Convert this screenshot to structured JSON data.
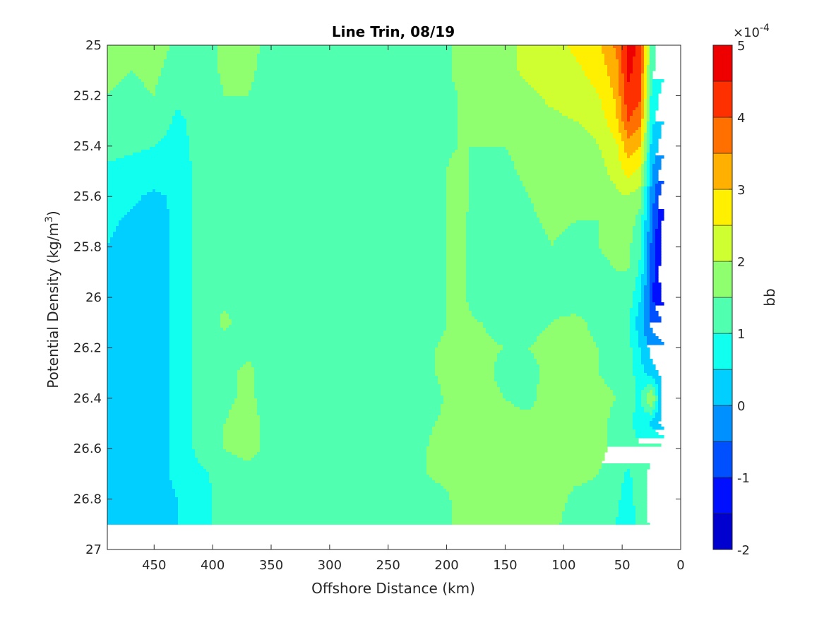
{
  "chart_data": {
    "type": "heatmap",
    "title": "Line Trin, 08/19",
    "xlabel": "Offshore Distance (km)",
    "ylabel_prefix": "Potential Density (kg/m",
    "ylabel_sup": "3",
    "ylabel_suffix": ")",
    "xlim": [
      490,
      0
    ],
    "ylim": [
      25,
      27
    ],
    "x_reversed": true,
    "y_reversed": true,
    "x_ticks": [
      450,
      400,
      350,
      300,
      250,
      200,
      150,
      100,
      50,
      0
    ],
    "x_tick_labels": [
      "450",
      "400",
      "350",
      "300",
      "250",
      "200",
      "150",
      "100",
      "50",
      "0"
    ],
    "y_ticks": [
      25,
      25.2,
      25.4,
      25.6,
      25.8,
      26,
      26.2,
      26.4,
      26.6,
      26.8,
      27
    ],
    "y_tick_labels": [
      "25",
      "25.2",
      "25.4",
      "25.6",
      "25.8",
      "26",
      "26.2",
      "26.4",
      "26.6",
      "26.8",
      "27"
    ],
    "colorbar": {
      "label": "bb",
      "exponent_label": "×10",
      "exponent_power": "-4",
      "range": [
        -2,
        5
      ],
      "ticks": [
        -2,
        -1,
        0,
        1,
        2,
        3,
        4,
        5
      ],
      "tick_labels": [
        "-2",
        "-1",
        "0",
        "1",
        "2",
        "3",
        "4",
        "5"
      ],
      "level_edges": [
        -2,
        -1.5,
        -1,
        -0.5,
        0,
        0.5,
        1,
        1.5,
        2,
        2.5,
        3,
        3.5,
        4,
        4.5,
        5
      ],
      "level_colors": [
        "#00008f",
        "#0000cf",
        "#0010ff",
        "#0050ff",
        "#0090ff",
        "#00cfff",
        "#10ffef",
        "#50ffaf",
        "#8fff70",
        "#cfff30",
        "#ffef00",
        "#ffb000",
        "#ff7000",
        "#ff3000",
        "#ef0000",
        "#af0000"
      ]
    },
    "data_extent": {
      "x_min": 10,
      "x_max": 490,
      "y_max": 26.9,
      "note_bottom_cut": "no data below 26.9"
    },
    "x": [
      490,
      470,
      450,
      430,
      410,
      390,
      370,
      350,
      330,
      310,
      290,
      270,
      250,
      230,
      210,
      190,
      170,
      150,
      130,
      110,
      90,
      70,
      55,
      45,
      35,
      25,
      15
    ],
    "y": [
      25,
      25.1,
      25.2,
      25.3,
      25.4,
      25.5,
      25.6,
      25.7,
      25.8,
      25.9,
      26,
      26.1,
      26.2,
      26.3,
      26.4,
      26.5,
      26.6,
      26.7,
      26.8,
      26.9
    ],
    "z_e4": [
      [
        1.7,
        1.6,
        1.7,
        1.4,
        1.3,
        1.6,
        1.7,
        1.3,
        1.3,
        1.3,
        1.3,
        1.3,
        1.3,
        1.3,
        1.3,
        1.6,
        1.7,
        1.9,
        2.1,
        2.3,
        2.6,
        2.9,
        3.6,
        4.7,
        4.4,
        1.2,
        0.7
      ],
      [
        1.6,
        1.5,
        1.6,
        1.3,
        1.2,
        1.6,
        1.6,
        1.3,
        1.3,
        1.3,
        1.3,
        1.3,
        1.3,
        1.3,
        1.3,
        1.6,
        1.7,
        1.9,
        2.1,
        2.2,
        2.4,
        2.7,
        3.3,
        4.6,
        4.3,
        1.1,
        0.6
      ],
      [
        1.5,
        1.4,
        1.5,
        1.1,
        1.2,
        1.5,
        1.5,
        1.3,
        1.3,
        1.3,
        1.3,
        1.3,
        1.3,
        1.3,
        1.3,
        1.5,
        1.6,
        1.7,
        1.9,
        2.1,
        2.2,
        2.5,
        3.1,
        4.4,
        4.1,
        0.9,
        0.3
      ],
      [
        1.4,
        1.3,
        1.3,
        0.9,
        1.2,
        1.4,
        1.4,
        1.3,
        1.3,
        1.3,
        1.3,
        1.3,
        1.3,
        1.3,
        1.4,
        1.5,
        1.6,
        1.6,
        1.8,
        1.9,
        2.0,
        2.2,
        2.9,
        4.0,
        3.7,
        0.7,
        0.0
      ],
      [
        1.2,
        1.1,
        1.0,
        0.8,
        1.2,
        1.3,
        1.3,
        1.3,
        1.3,
        1.3,
        1.3,
        1.3,
        1.3,
        1.3,
        1.4,
        1.5,
        1.5,
        1.5,
        1.7,
        1.8,
        1.7,
        2.0,
        2.4,
        3.3,
        3.0,
        0.4,
        -0.3
      ],
      [
        0.9,
        0.8,
        0.8,
        0.7,
        1.2,
        1.3,
        1.3,
        1.3,
        1.3,
        1.3,
        1.3,
        1.3,
        1.3,
        1.3,
        1.4,
        1.6,
        1.4,
        1.4,
        1.6,
        1.7,
        1.6,
        1.8,
        2.2,
        2.7,
        2.4,
        0.1,
        -0.8
      ],
      [
        0.7,
        0.6,
        0.4,
        0.6,
        1.2,
        1.3,
        1.3,
        1.3,
        1.3,
        1.3,
        1.3,
        1.3,
        1.3,
        1.3,
        1.4,
        1.6,
        1.4,
        1.3,
        1.5,
        1.7,
        1.5,
        1.6,
        1.9,
        2.0,
        1.7,
        -0.2,
        -1.4
      ],
      [
        0.6,
        0.4,
        0.3,
        0.6,
        1.2,
        1.3,
        1.3,
        1.3,
        1.3,
        1.3,
        1.3,
        1.3,
        1.3,
        1.3,
        1.4,
        1.6,
        1.3,
        1.3,
        1.4,
        1.6,
        1.5,
        1.5,
        1.7,
        1.8,
        1.3,
        -0.4,
        -1.6
      ],
      [
        0.5,
        0.3,
        0.3,
        0.6,
        1.2,
        1.3,
        1.3,
        1.3,
        1.3,
        1.3,
        1.3,
        1.3,
        1.3,
        1.3,
        1.4,
        1.6,
        1.3,
        1.2,
        1.3,
        1.5,
        1.3,
        1.5,
        1.6,
        1.6,
        1.1,
        -0.6,
        -1.8
      ],
      [
        0.4,
        0.3,
        0.3,
        0.6,
        1.2,
        1.3,
        1.3,
        1.3,
        1.3,
        1.3,
        1.3,
        1.3,
        1.3,
        1.3,
        1.4,
        1.6,
        1.3,
        1.2,
        1.3,
        1.4,
        1.3,
        1.4,
        1.5,
        1.5,
        0.9,
        -0.7,
        -1.9
      ],
      [
        0.3,
        0.3,
        0.3,
        0.6,
        1.2,
        1.4,
        1.3,
        1.3,
        1.3,
        1.3,
        1.3,
        1.3,
        1.3,
        1.3,
        1.4,
        1.6,
        1.3,
        1.2,
        1.3,
        1.4,
        1.3,
        1.4,
        1.4,
        1.3,
        0.6,
        -0.9,
        -1.7
      ],
      [
        0.3,
        0.3,
        0.3,
        0.6,
        1.2,
        1.6,
        1.3,
        1.3,
        1.3,
        1.3,
        1.3,
        1.3,
        1.3,
        1.3,
        1.4,
        1.6,
        1.5,
        1.3,
        1.4,
        1.5,
        1.6,
        1.4,
        1.3,
        1.1,
        0.2,
        -0.6,
        -1.0
      ],
      [
        0.3,
        0.3,
        0.3,
        0.6,
        1.2,
        1.3,
        1.4,
        1.3,
        1.3,
        1.3,
        1.3,
        1.3,
        1.3,
        1.3,
        1.5,
        1.6,
        1.6,
        1.5,
        1.5,
        1.6,
        1.6,
        1.5,
        1.4,
        1.2,
        0.5,
        -0.2,
        -0.4
      ],
      [
        0.3,
        0.3,
        0.3,
        0.6,
        1.2,
        1.4,
        1.6,
        1.3,
        1.3,
        1.3,
        1.3,
        1.3,
        1.3,
        1.3,
        1.5,
        1.7,
        1.7,
        1.3,
        1.4,
        1.6,
        1.7,
        1.5,
        1.4,
        1.3,
        0.7,
        0.2,
        -0.2
      ],
      [
        0.3,
        0.3,
        0.3,
        0.6,
        1.2,
        1.4,
        1.6,
        1.3,
        1.3,
        1.3,
        1.3,
        1.3,
        1.3,
        1.3,
        1.4,
        1.7,
        1.7,
        1.5,
        1.4,
        1.7,
        1.7,
        1.6,
        1.5,
        1.3,
        0.9,
        2.1,
        -0.2
      ],
      [
        0.3,
        0.3,
        0.3,
        0.6,
        1.2,
        1.5,
        1.7,
        1.3,
        1.3,
        1.3,
        1.3,
        1.3,
        1.3,
        1.3,
        1.5,
        1.6,
        1.7,
        1.6,
        1.6,
        1.7,
        1.7,
        1.6,
        1.4,
        1.2,
        0.7,
        0.4,
        -0.3
      ],
      [
        0.3,
        0.3,
        0.3,
        0.6,
        1.2,
        1.5,
        1.7,
        1.3,
        1.3,
        1.3,
        1.3,
        1.3,
        1.3,
        1.3,
        1.6,
        1.6,
        1.7,
        1.7,
        1.6,
        1.7,
        1.6,
        1.6,
        1.4,
        1.3,
        1.1,
        1.2,
        1.2
      ],
      [
        0.3,
        0.4,
        0.3,
        0.6,
        0.9,
        1.2,
        1.3,
        1.3,
        1.3,
        1.3,
        1.3,
        1.3,
        1.3,
        1.3,
        1.6,
        1.6,
        1.6,
        1.9,
        1.7,
        1.7,
        1.6,
        1.5,
        1.2,
        0.9,
        1.3,
        1.7,
        1.7
      ],
      [
        0.3,
        0.3,
        0.3,
        0.5,
        0.8,
        1.2,
        1.3,
        1.3,
        1.3,
        1.3,
        1.2,
        1.3,
        1.3,
        1.3,
        1.3,
        1.6,
        1.6,
        1.7,
        1.9,
        1.7,
        1.4,
        1.4,
        1.1,
        0.8,
        1.3,
        1.7,
        1.7
      ],
      [
        0.3,
        0.3,
        0.3,
        0.5,
        0.8,
        1.2,
        1.3,
        1.3,
        1.3,
        1.3,
        1.0,
        1.0,
        1.3,
        1.3,
        1.3,
        1.6,
        1.6,
        1.6,
        1.9,
        1.6,
        1.3,
        1.3,
        1.0,
        0.5,
        1.2,
        1.6,
        1.6
      ]
    ]
  }
}
